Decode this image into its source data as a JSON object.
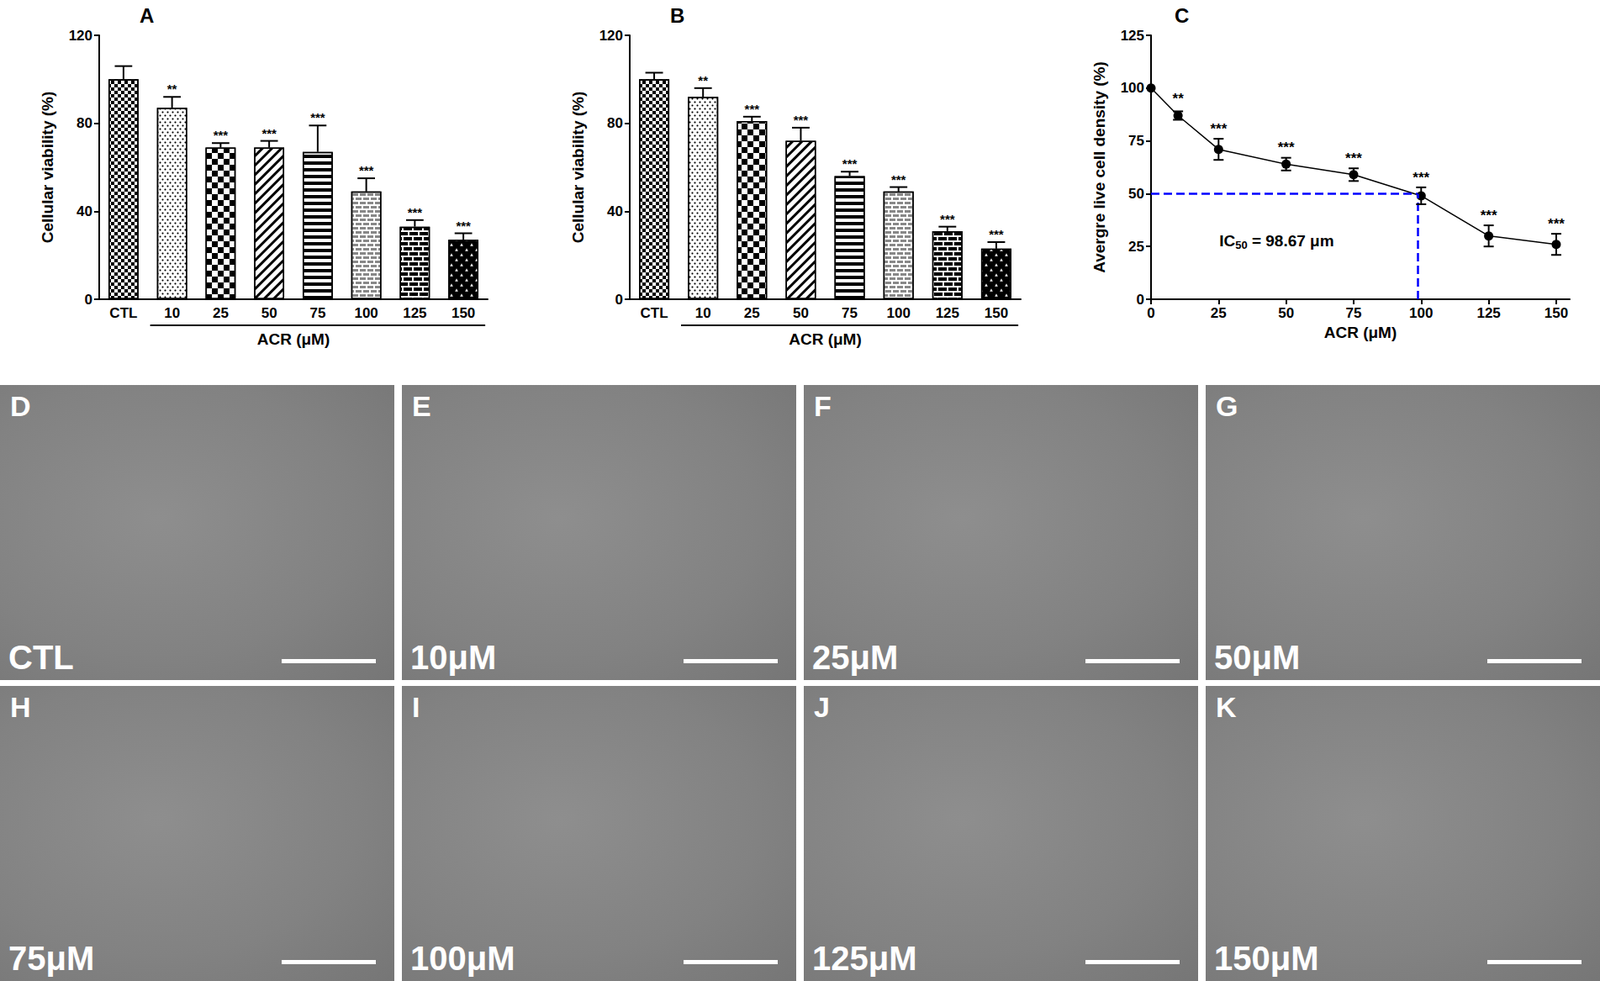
{
  "chart_data": [
    {
      "panel": "A",
      "type": "bar",
      "ylabel": "Cellular viability (%)",
      "xlabel": "ACR (μM)",
      "categories": [
        "CTL",
        "10",
        "25",
        "50",
        "75",
        "100",
        "125",
        "150"
      ],
      "values": [
        100,
        87,
        69,
        69,
        67,
        49,
        33,
        27
      ],
      "errors": [
        6,
        5,
        2,
        3,
        12,
        6,
        3,
        3
      ],
      "significance": [
        null,
        "**",
        "***",
        "***",
        "***",
        "***",
        "***",
        "***"
      ],
      "color": "#000000",
      "ylim": [
        0,
        120
      ],
      "yticks": [
        0,
        40,
        80,
        120
      ],
      "grid": false
    },
    {
      "panel": "B",
      "type": "bar",
      "ylabel": "Cellular viability (%)",
      "xlabel": "ACR (μM)",
      "categories": [
        "CTL",
        "10",
        "25",
        "50",
        "75",
        "100",
        "125",
        "150"
      ],
      "values": [
        100,
        92,
        81,
        72,
        56,
        49,
        31,
        23
      ],
      "errors": [
        3,
        4,
        2,
        6,
        2,
        2,
        2,
        3
      ],
      "significance": [
        null,
        "**",
        "***",
        "***",
        "***",
        "***",
        "***",
        "***"
      ],
      "color": "#000000",
      "ylim": [
        0,
        120
      ],
      "yticks": [
        0,
        40,
        80,
        120
      ],
      "grid": false
    },
    {
      "panel": "C",
      "type": "line",
      "ylabel": "Avergre live cell density (%)",
      "xlabel": "ACR (μM)",
      "x": [
        0,
        10,
        25,
        50,
        75,
        100,
        125,
        150
      ],
      "values": [
        100,
        87,
        71,
        64,
        59,
        49,
        30,
        26
      ],
      "errors": [
        0,
        2,
        5,
        3,
        3,
        4,
        5,
        5
      ],
      "significance": [
        null,
        "**",
        "***",
        "***",
        "***",
        "***",
        "***",
        "***"
      ],
      "color": "#000000",
      "marker": "circle",
      "xlim": [
        0,
        155
      ],
      "xticks": [
        0,
        25,
        50,
        75,
        100,
        125,
        150
      ],
      "ylim": [
        0,
        125
      ],
      "yticks": [
        0,
        25,
        50,
        75,
        100,
        125
      ],
      "grid": false,
      "reference_lines": {
        "x": 98.67,
        "y": 50,
        "color": "#0000ff",
        "line_style": "dashed"
      },
      "annotation": "IC50 = 98.67 μm"
    }
  ],
  "images": [
    {
      "panel": "D",
      "label": "CTL"
    },
    {
      "panel": "E",
      "label": "10μM"
    },
    {
      "panel": "F",
      "label": "25μM"
    },
    {
      "panel": "G",
      "label": "50μM"
    },
    {
      "panel": "H",
      "label": "75μM"
    },
    {
      "panel": "I",
      "label": "100μM"
    },
    {
      "panel": "J",
      "label": "125μM"
    },
    {
      "panel": "K",
      "label": "150μM"
    }
  ]
}
